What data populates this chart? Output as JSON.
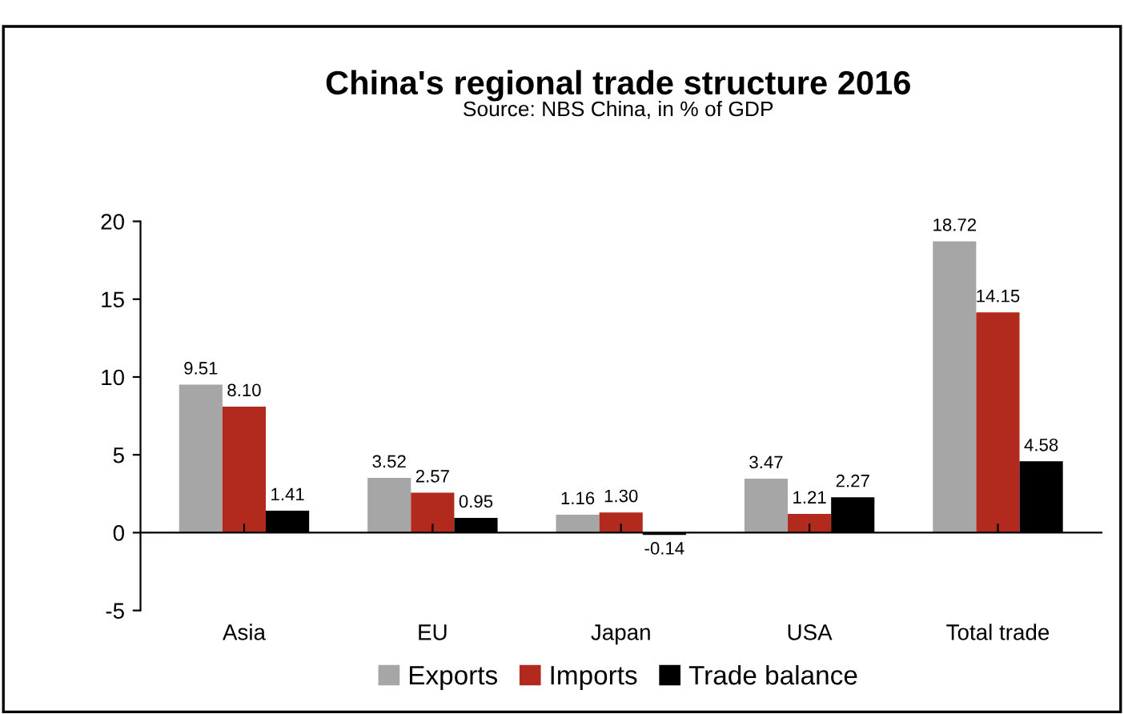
{
  "chart_data": {
    "type": "bar",
    "title": "China's regional trade structure 2016",
    "subtitle": "Source: NBS China, in % of GDP",
    "categories": [
      "Asia",
      "EU",
      "Japan",
      "USA",
      "Total trade"
    ],
    "series": [
      {
        "name": "Exports",
        "color": "#a6a6a6",
        "values": [
          9.51,
          3.52,
          1.16,
          3.47,
          18.72
        ],
        "value_labels": [
          "9.51",
          "3.52",
          "1.16",
          "3.47",
          "18.72"
        ]
      },
      {
        "name": "Imports",
        "color": "#b22a1e",
        "values": [
          8.1,
          2.57,
          1.3,
          1.21,
          14.15
        ],
        "value_labels": [
          "8.10",
          "2.57",
          "1.30",
          "1.21",
          "14.15"
        ]
      },
      {
        "name": "Trade balance",
        "color": "#000000",
        "values": [
          1.41,
          0.95,
          -0.14,
          2.27,
          4.58
        ],
        "value_labels": [
          "1.41",
          "0.95",
          "-0.14",
          "2.27",
          "4.58"
        ]
      }
    ],
    "ylim": [
      -5,
      20
    ],
    "yticks": [
      -5,
      0,
      5,
      10,
      15,
      20
    ],
    "legend": "bottom"
  }
}
